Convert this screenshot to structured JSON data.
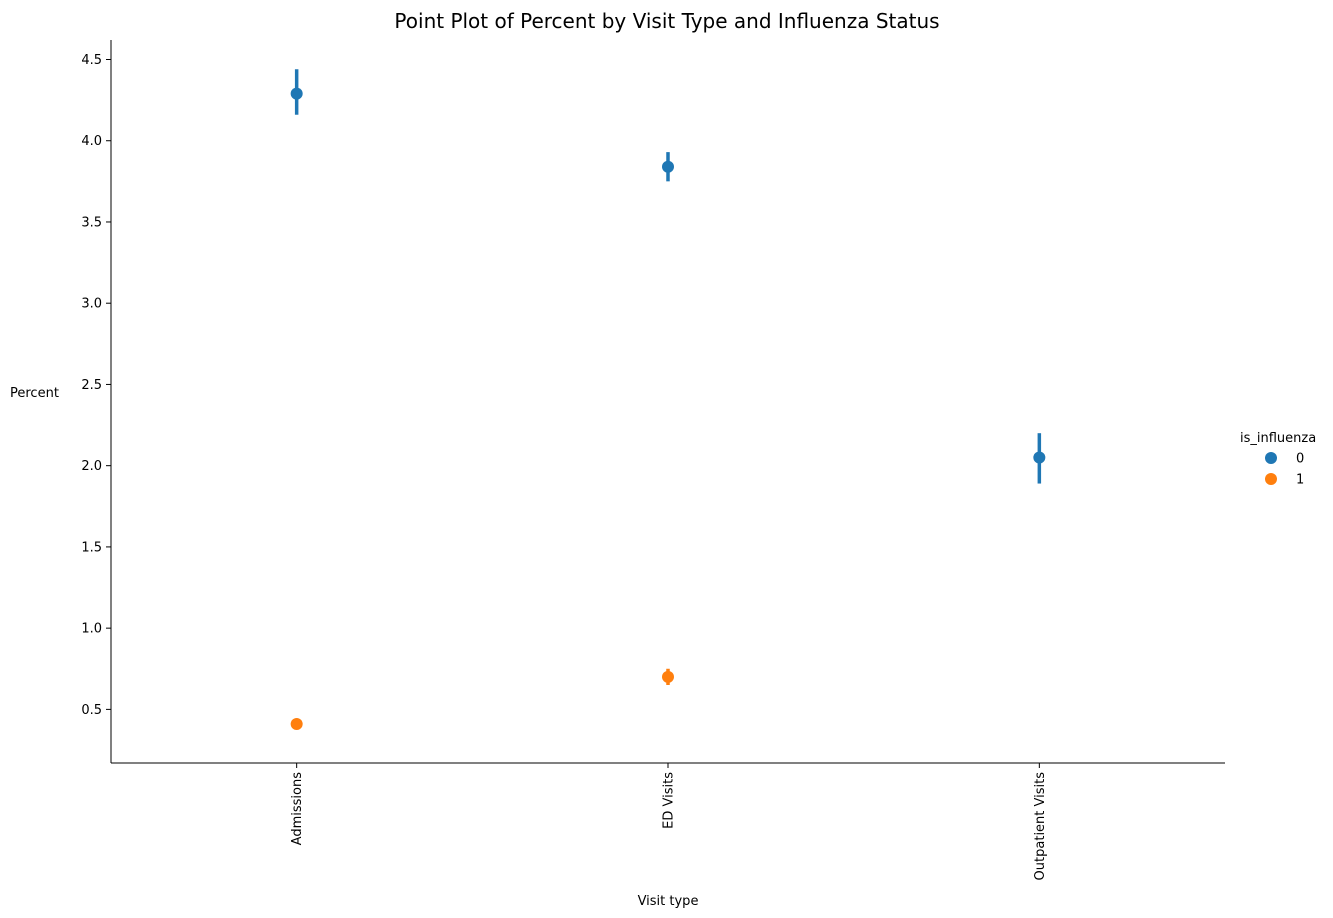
{
  "chart_data": {
    "type": "scatter",
    "title": "Point Plot of Percent by Visit Type and Influenza Status",
    "xlabel": "Visit type",
    "ylabel": "Percent",
    "categories": [
      "Admissions",
      "ED Visits",
      "Outpatient Visits"
    ],
    "ylim": [
      0.17,
      4.62
    ],
    "yticks": [
      "0.5",
      "1.0",
      "1.5",
      "2.0",
      "2.5",
      "3.0",
      "3.5",
      "4.0",
      "4.5"
    ],
    "grid": false,
    "legend": {
      "title": "is_influenza",
      "placement": "center-right"
    },
    "series": [
      {
        "name": "0",
        "color": "#1f77b4",
        "values": [
          4.29,
          3.84,
          2.05
        ],
        "ci_low": [
          4.16,
          3.75,
          1.89
        ],
        "ci_high": [
          4.44,
          3.93,
          2.2
        ]
      },
      {
        "name": "1",
        "color": "#ff7f0e",
        "values": [
          0.41,
          0.7,
          null
        ],
        "ci_low": [
          0.38,
          0.65,
          null
        ],
        "ci_high": [
          0.44,
          0.75,
          null
        ]
      }
    ]
  }
}
